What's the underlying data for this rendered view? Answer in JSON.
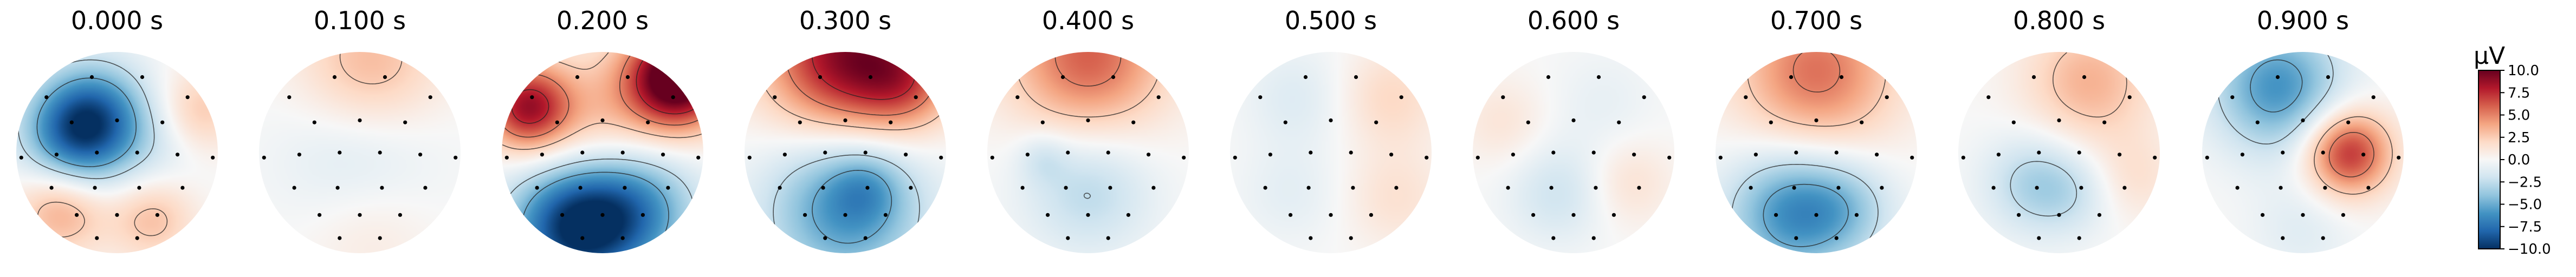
{
  "chart_data": {
    "type": "heatmap",
    "panel_titles": [
      "0.000 s",
      "0.100 s",
      "0.200 s",
      "0.300 s",
      "0.400 s",
      "0.500 s",
      "0.600 s",
      "0.700 s",
      "0.800 s",
      "0.900 s"
    ],
    "times_s": [
      0.0,
      0.1,
      0.2,
      0.3,
      0.4,
      0.5,
      0.6,
      0.7,
      0.8,
      0.9
    ],
    "colorbar": {
      "unit": "µV",
      "colormap": "RdBu_r",
      "range": [
        -10.0,
        10.0
      ],
      "tick_values": [
        10.0,
        7.5,
        5.0,
        2.5,
        0.0,
        -2.5,
        -5.0,
        -7.5,
        -10.0
      ],
      "tick_labels": [
        "10.0",
        "7.5",
        "5.0",
        "2.5",
        "0.0",
        "−2.5",
        "−5.0",
        "−7.5",
        "−10.0"
      ]
    },
    "contour_levels": [
      -5.0,
      -2.5,
      2.5,
      5.0,
      7.5
    ],
    "sources_note_units": "µV",
    "topomaps": [
      {
        "time": "0.000 s",
        "sources": [
          {
            "x": -0.38,
            "y": -0.2,
            "amp": -8.5,
            "w": 0.38
          },
          {
            "x": -0.15,
            "y": -0.45,
            "amp": -3.0,
            "w": 0.35
          },
          {
            "x": -0.55,
            "y": 0.55,
            "amp": 4.0,
            "w": 0.32
          },
          {
            "x": 0.35,
            "y": 0.65,
            "amp": 3.0,
            "w": 0.3
          },
          {
            "x": 0.8,
            "y": -0.4,
            "amp": 3.0,
            "w": 0.3
          },
          {
            "x": 0.45,
            "y": -0.1,
            "amp": -1.5,
            "w": 0.35
          }
        ]
      },
      {
        "time": "0.100 s",
        "sources": [
          {
            "x": 0.1,
            "y": -0.85,
            "amp": 3.5,
            "w": 0.5
          },
          {
            "x": 0.0,
            "y": 0.0,
            "amp": -1.8,
            "w": 0.55
          },
          {
            "x": 0.1,
            "y": 0.75,
            "amp": 1.2,
            "w": 0.45
          }
        ]
      },
      {
        "time": "0.200 s",
        "sources": [
          {
            "x": 0.75,
            "y": -0.75,
            "amp": 12.0,
            "w": 0.35
          },
          {
            "x": -0.75,
            "y": -0.45,
            "amp": 8.0,
            "w": 0.3
          },
          {
            "x": 0.0,
            "y": -0.3,
            "amp": 3.0,
            "w": 0.5
          },
          {
            "x": -0.3,
            "y": 0.75,
            "amp": -9.0,
            "w": 0.45
          },
          {
            "x": 0.3,
            "y": 0.55,
            "amp": -6.0,
            "w": 0.45
          }
        ]
      },
      {
        "time": "0.300 s",
        "sources": [
          {
            "x": 0.0,
            "y": -0.95,
            "amp": 9.0,
            "w": 0.55
          },
          {
            "x": 0.6,
            "y": -0.7,
            "amp": 4.0,
            "w": 0.35
          },
          {
            "x": 0.0,
            "y": 0.55,
            "amp": -6.0,
            "w": 0.55
          },
          {
            "x": 0.2,
            "y": 0.35,
            "amp": -2.0,
            "w": 0.25
          }
        ]
      },
      {
        "time": "0.400 s",
        "sources": [
          {
            "x": 0.0,
            "y": -0.95,
            "amp": 6.0,
            "w": 0.55
          },
          {
            "x": 0.0,
            "y": 0.35,
            "amp": -2.8,
            "w": 0.45
          },
          {
            "x": -0.45,
            "y": 0.05,
            "amp": -1.5,
            "w": 0.18
          }
        ]
      },
      {
        "time": "0.500 s",
        "sources": [
          {
            "x": 0.6,
            "y": -0.55,
            "amp": 2.0,
            "w": 0.35
          },
          {
            "x": -0.35,
            "y": -0.55,
            "amp": -1.3,
            "w": 0.35
          },
          {
            "x": 0.65,
            "y": 0.45,
            "amp": 1.5,
            "w": 0.35
          },
          {
            "x": -0.4,
            "y": 0.4,
            "amp": -1.0,
            "w": 0.35
          }
        ]
      },
      {
        "time": "0.600 s",
        "sources": [
          {
            "x": -0.15,
            "y": 0.4,
            "amp": -2.0,
            "w": 0.35
          },
          {
            "x": 0.55,
            "y": 0.3,
            "amp": 1.5,
            "w": 0.3
          },
          {
            "x": -0.7,
            "y": -0.3,
            "amp": 1.3,
            "w": 0.3
          },
          {
            "x": 0.3,
            "y": -0.5,
            "amp": -0.8,
            "w": 0.35
          }
        ]
      },
      {
        "time": "0.700 s",
        "sources": [
          {
            "x": 0.0,
            "y": -0.8,
            "amp": 5.5,
            "w": 0.55
          },
          {
            "x": -0.25,
            "y": 0.6,
            "amp": -6.0,
            "w": 0.45
          },
          {
            "x": 0.3,
            "y": 0.55,
            "amp": -2.5,
            "w": 0.35
          }
        ]
      },
      {
        "time": "0.800 s",
        "sources": [
          {
            "x": 0.3,
            "y": -0.7,
            "amp": 3.5,
            "w": 0.45
          },
          {
            "x": -0.25,
            "y": 0.3,
            "amp": -3.0,
            "w": 0.35
          },
          {
            "x": 0.15,
            "y": 0.4,
            "amp": -1.5,
            "w": 0.3
          },
          {
            "x": 0.75,
            "y": 0.25,
            "amp": 1.5,
            "w": 0.3
          }
        ]
      },
      {
        "time": "0.900 s",
        "sources": [
          {
            "x": -0.25,
            "y": -0.65,
            "amp": -6.0,
            "w": 0.45
          },
          {
            "x": 0.45,
            "y": 0.0,
            "amp": 7.5,
            "w": 0.3
          },
          {
            "x": 0.0,
            "y": 0.75,
            "amp": -1.2,
            "w": 0.35
          }
        ]
      }
    ]
  }
}
